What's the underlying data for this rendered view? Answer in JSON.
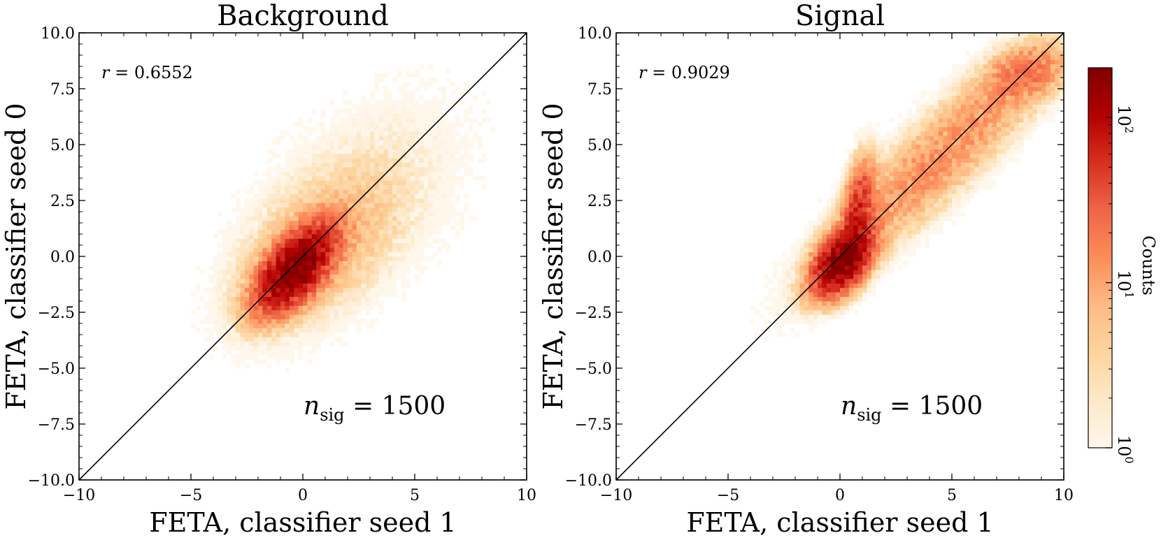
{
  "colormap": {
    "name": "OrRd",
    "stops": [
      "#fff7ec",
      "#fee8c8",
      "#fdd49e",
      "#fdbb84",
      "#fc8d59",
      "#ef6548",
      "#d7301f",
      "#b30000",
      "#7f0000"
    ]
  },
  "chart_data": [
    {
      "type": "heatmap",
      "title": "Background",
      "xlabel": "FETA, classifier seed 1",
      "ylabel": "FETA, classifier seed 0",
      "xlim": [
        -10,
        10
      ],
      "ylim": [
        -10,
        10
      ],
      "xticks": [
        -10,
        -5,
        0,
        5,
        10
      ],
      "yticks": [
        -10.0,
        -7.5,
        -5.0,
        -2.5,
        0.0,
        2.5,
        5.0,
        7.5,
        10.0
      ],
      "annotation_r": "r = 0.6552",
      "annotation_n": "n_sig = 1500",
      "diagonal": "y = x",
      "density_components": [
        {
          "mx": -0.3,
          "my": -0.5,
          "sx": 0.9,
          "sy": 1.0,
          "rho": 0.6,
          "peak_counts": 200
        },
        {
          "mx": 0.5,
          "my": 0.2,
          "sx": 2.0,
          "sy": 2.0,
          "rho": 0.5,
          "peak_counts": 8
        },
        {
          "mx": 2.5,
          "my": 2.5,
          "sx": 3.0,
          "sy": 3.0,
          "rho": 0.45,
          "peak_counts": 2
        }
      ]
    },
    {
      "type": "heatmap",
      "title": "Signal",
      "xlabel": "FETA, classifier seed 1",
      "ylabel": "FETA, classifier seed 0",
      "xlim": [
        -10,
        10
      ],
      "ylim": [
        -10,
        10
      ],
      "xticks": [
        -10,
        -5,
        0,
        5,
        10
      ],
      "yticks": [
        -10.0,
        -7.5,
        -5.0,
        -2.5,
        0.0,
        2.5,
        5.0,
        7.5,
        10.0
      ],
      "annotation_r": "r = 0.9029",
      "annotation_n": "n_sig = 1500",
      "diagonal": "y = x",
      "density_components": [
        {
          "mx": 0.1,
          "my": -0.2,
          "sx": 0.7,
          "sy": 0.8,
          "rho": 0.5,
          "peak_counts": 180
        },
        {
          "mx": 0.8,
          "my": 1.8,
          "sx": 0.4,
          "sy": 1.3,
          "rho": 0.4,
          "peak_counts": 60
        },
        {
          "mx": 4.5,
          "my": 4.5,
          "sx": 3.0,
          "sy": 2.9,
          "rho": 0.9,
          "peak_counts": 14
        },
        {
          "mx": 8.3,
          "my": 8.2,
          "sx": 1.0,
          "sy": 0.7,
          "rho": 0.3,
          "peak_counts": 18
        }
      ]
    }
  ],
  "colorbar": {
    "label": "Counts",
    "scale": "log",
    "range": [
      1,
      200
    ],
    "ticks": [
      {
        "value": 1,
        "base": "10",
        "exp": "0"
      },
      {
        "value": 10,
        "base": "10",
        "exp": "1"
      },
      {
        "value": 100,
        "base": "10",
        "exp": "2"
      }
    ]
  }
}
